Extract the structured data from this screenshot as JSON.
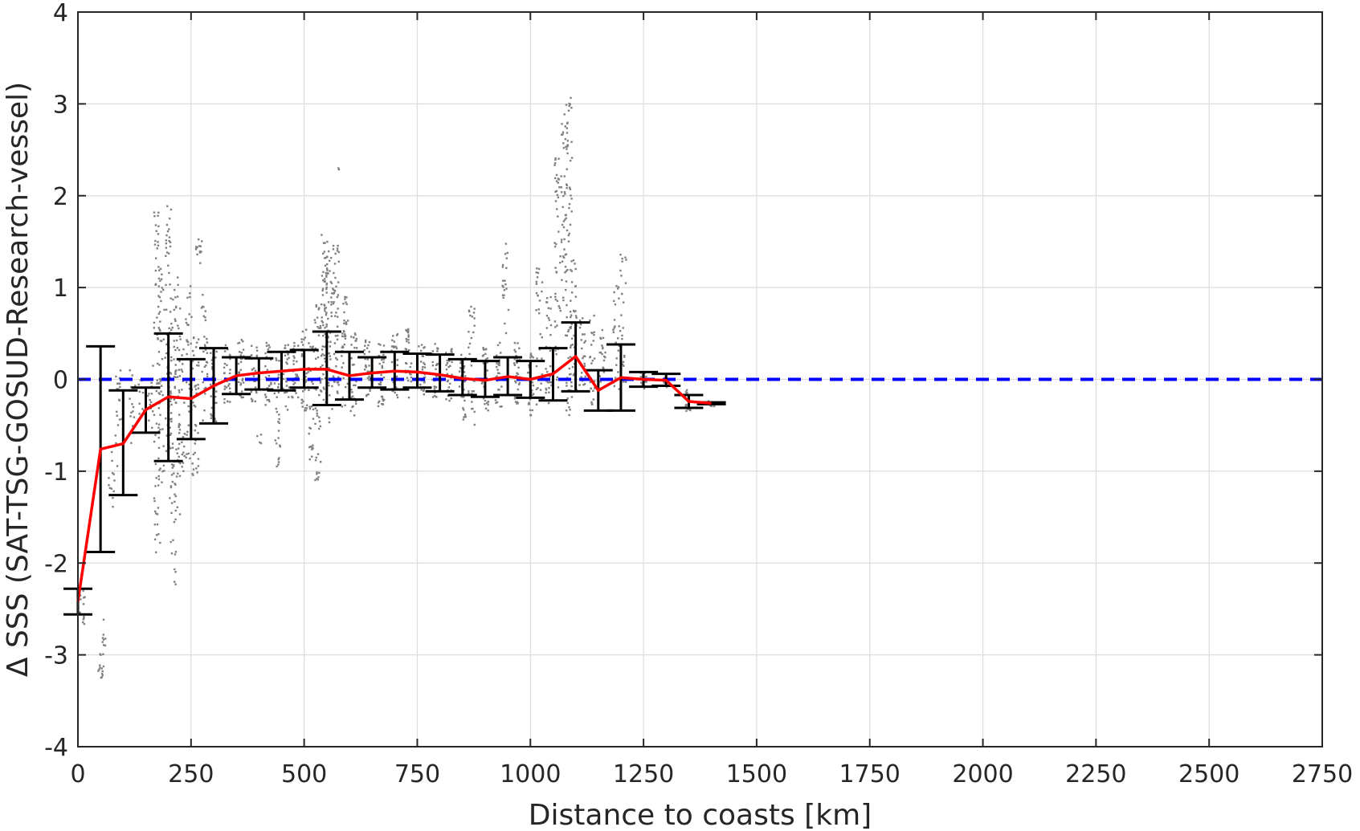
{
  "chart_data": {
    "type": "scatter",
    "xlabel": "Distance to coasts [km]",
    "ylabel": "Δ SSS (SAT-TSG-GOSUD-Research-vessel)",
    "xlim": [
      0,
      2750
    ],
    "ylim": [
      -4,
      4
    ],
    "xticks": [
      0,
      250,
      500,
      750,
      1000,
      1250,
      1500,
      1750,
      2000,
      2250,
      2500,
      2750
    ],
    "yticks": [
      -4,
      -3,
      -2,
      -1,
      0,
      1,
      2,
      3,
      4
    ],
    "grid": true,
    "colors": {
      "scatter": "#808080",
      "mean_line": "#ff0000",
      "zero_line": "#0000ff",
      "error_bars": "#000000"
    },
    "reference_line": {
      "y": 0,
      "style": "dashed"
    },
    "mean_curve": {
      "x": [
        0,
        50,
        100,
        150,
        200,
        250,
        300,
        350,
        400,
        450,
        500,
        550,
        600,
        650,
        700,
        750,
        800,
        850,
        900,
        950,
        1000,
        1050,
        1100,
        1150,
        1200,
        1250,
        1300,
        1350,
        1400
      ],
      "y": [
        -2.42,
        -0.76,
        -0.7,
        -0.33,
        -0.19,
        -0.21,
        -0.07,
        0.04,
        0.07,
        0.09,
        0.11,
        0.11,
        0.04,
        0.07,
        0.09,
        0.08,
        0.05,
        0.01,
        -0.01,
        0.03,
        0.0,
        0.06,
        0.25,
        -0.12,
        0.02,
        0.0,
        -0.01,
        -0.24,
        -0.26
      ]
    },
    "error_bars": {
      "x": [
        0,
        50,
        100,
        150,
        200,
        250,
        300,
        350,
        400,
        450,
        500,
        550,
        600,
        650,
        700,
        750,
        800,
        850,
        900,
        950,
        1000,
        1050,
        1100,
        1150,
        1200,
        1250,
        1300,
        1350,
        1400
      ],
      "lower": [
        -2.56,
        -1.88,
        -1.26,
        -0.58,
        -0.89,
        -0.65,
        -0.48,
        -0.16,
        -0.11,
        -0.12,
        -0.09,
        -0.28,
        -0.22,
        -0.09,
        -0.11,
        -0.09,
        -0.13,
        -0.17,
        -0.19,
        -0.17,
        -0.2,
        -0.23,
        -0.13,
        -0.34,
        -0.34,
        -0.08,
        -0.07,
        -0.31,
        -0.27
      ],
      "upper": [
        -2.28,
        0.36,
        -0.12,
        -0.09,
        0.5,
        0.22,
        0.34,
        0.24,
        0.23,
        0.3,
        0.32,
        0.52,
        0.3,
        0.24,
        0.3,
        0.28,
        0.27,
        0.22,
        0.2,
        0.24,
        0.2,
        0.34,
        0.62,
        0.1,
        0.38,
        0.08,
        0.06,
        -0.17,
        -0.25
      ]
    },
    "scatter_columns": [
      {
        "x": 10,
        "ymin": -2.75,
        "ymax": -2.3,
        "n": 12
      },
      {
        "x": 50,
        "ymin": -3.28,
        "ymax": -2.95,
        "n": 14
      },
      {
        "x": 58,
        "ymin": -2.9,
        "ymax": -2.6,
        "n": 8
      },
      {
        "x": 75,
        "ymin": -1.65,
        "ymax": -0.75,
        "n": 12
      },
      {
        "x": 90,
        "ymin": -0.95,
        "ymax": 0.1,
        "n": 20
      },
      {
        "x": 120,
        "ymin": -0.7,
        "ymax": 0.2,
        "n": 14
      },
      {
        "x": 140,
        "ymin": -0.5,
        "ymax": 0.0,
        "n": 12
      },
      {
        "x": 160,
        "ymin": -0.55,
        "ymax": 0.2,
        "n": 14
      },
      {
        "x": 175,
        "ymin": -1.9,
        "ymax": 1.85,
        "n": 70
      },
      {
        "x": 185,
        "ymin": -1.2,
        "ymax": 1.3,
        "n": 40
      },
      {
        "x": 200,
        "ymin": -0.8,
        "ymax": 1.95,
        "n": 60
      },
      {
        "x": 210,
        "ymin": -2.27,
        "ymax": 0.9,
        "n": 55
      },
      {
        "x": 220,
        "ymin": -1.5,
        "ymax": 1.2,
        "n": 40
      },
      {
        "x": 230,
        "ymin": -1.0,
        "ymax": 0.5,
        "n": 30
      },
      {
        "x": 245,
        "ymin": -0.9,
        "ymax": 1.1,
        "n": 35
      },
      {
        "x": 260,
        "ymin": -1.1,
        "ymax": 0.5,
        "n": 40
      },
      {
        "x": 268,
        "ymin": 1.25,
        "ymax": 1.55,
        "n": 14
      },
      {
        "x": 280,
        "ymin": -0.45,
        "ymax": 1.0,
        "n": 30
      },
      {
        "x": 300,
        "ymin": -0.5,
        "ymax": 0.35,
        "n": 30
      },
      {
        "x": 330,
        "ymin": -0.3,
        "ymax": 0.4,
        "n": 30
      },
      {
        "x": 360,
        "ymin": -0.2,
        "ymax": 0.45,
        "n": 30
      },
      {
        "x": 390,
        "ymin": -0.25,
        "ymax": 0.4,
        "n": 30
      },
      {
        "x": 400,
        "ymin": -0.7,
        "ymax": -0.6,
        "n": 4
      },
      {
        "x": 420,
        "ymin": -0.3,
        "ymax": 0.4,
        "n": 30
      },
      {
        "x": 440,
        "ymin": -0.95,
        "ymax": 0.35,
        "n": 30
      },
      {
        "x": 460,
        "ymin": -0.35,
        "ymax": 0.45,
        "n": 30
      },
      {
        "x": 480,
        "ymin": -0.2,
        "ymax": 0.45,
        "n": 30
      },
      {
        "x": 500,
        "ymin": -0.35,
        "ymax": 0.55,
        "n": 30
      },
      {
        "x": 515,
        "ymin": -0.9,
        "ymax": 0.4,
        "n": 30
      },
      {
        "x": 530,
        "ymin": -1.1,
        "ymax": 0.9,
        "n": 45
      },
      {
        "x": 545,
        "ymin": -0.3,
        "ymax": 1.6,
        "n": 60
      },
      {
        "x": 555,
        "ymin": -0.5,
        "ymax": 1.4,
        "n": 55
      },
      {
        "x": 570,
        "ymin": -0.2,
        "ymax": 1.7,
        "n": 45
      },
      {
        "x": 575,
        "ymin": 2.25,
        "ymax": 2.3,
        "n": 2
      },
      {
        "x": 590,
        "ymin": -0.3,
        "ymax": 0.9,
        "n": 35
      },
      {
        "x": 610,
        "ymin": -0.4,
        "ymax": 0.5,
        "n": 30
      },
      {
        "x": 640,
        "ymin": -0.2,
        "ymax": 0.45,
        "n": 30
      },
      {
        "x": 670,
        "ymin": -0.3,
        "ymax": 0.4,
        "n": 30
      },
      {
        "x": 700,
        "ymin": -0.2,
        "ymax": 0.5,
        "n": 30
      },
      {
        "x": 730,
        "ymin": -0.2,
        "ymax": 0.55,
        "n": 30
      },
      {
        "x": 760,
        "ymin": -0.2,
        "ymax": 0.45,
        "n": 30
      },
      {
        "x": 790,
        "ymin": -0.25,
        "ymax": 0.4,
        "n": 30
      },
      {
        "x": 820,
        "ymin": -0.3,
        "ymax": 0.35,
        "n": 30
      },
      {
        "x": 850,
        "ymin": -0.45,
        "ymax": 0.3,
        "n": 30
      },
      {
        "x": 870,
        "ymin": -0.5,
        "ymax": 0.85,
        "n": 30
      },
      {
        "x": 900,
        "ymin": -0.35,
        "ymax": 0.35,
        "n": 30
      },
      {
        "x": 930,
        "ymin": -0.3,
        "ymax": 0.45,
        "n": 30
      },
      {
        "x": 945,
        "ymin": 0.5,
        "ymax": 1.5,
        "n": 20
      },
      {
        "x": 970,
        "ymin": -0.3,
        "ymax": 0.4,
        "n": 30
      },
      {
        "x": 1000,
        "ymin": -0.4,
        "ymax": 0.3,
        "n": 30
      },
      {
        "x": 1020,
        "ymin": -0.3,
        "ymax": 1.3,
        "n": 30
      },
      {
        "x": 1040,
        "ymin": -0.3,
        "ymax": 0.9,
        "n": 30
      },
      {
        "x": 1060,
        "ymin": -0.1,
        "ymax": 2.5,
        "n": 45
      },
      {
        "x": 1075,
        "ymin": 0.8,
        "ymax": 2.9,
        "n": 45
      },
      {
        "x": 1085,
        "ymin": -0.5,
        "ymax": 3.08,
        "n": 65
      },
      {
        "x": 1095,
        "ymin": -0.2,
        "ymax": 1.3,
        "n": 35
      },
      {
        "x": 1115,
        "ymin": -0.1,
        "ymax": 0.7,
        "n": 25
      },
      {
        "x": 1135,
        "ymin": -0.3,
        "ymax": 0.7,
        "n": 25
      },
      {
        "x": 1160,
        "ymin": -0.2,
        "ymax": 0.55,
        "n": 20
      },
      {
        "x": 1190,
        "ymin": -0.15,
        "ymax": 1.05,
        "n": 25
      },
      {
        "x": 1205,
        "ymin": -0.1,
        "ymax": 1.4,
        "n": 25
      },
      {
        "x": 1250,
        "ymin": -0.1,
        "ymax": 0.1,
        "n": 15
      },
      {
        "x": 1300,
        "ymin": -0.1,
        "ymax": 0.05,
        "n": 12
      },
      {
        "x": 1350,
        "ymin": -0.4,
        "ymax": -0.1,
        "n": 12
      },
      {
        "x": 1400,
        "ymin": -0.3,
        "ymax": -0.22,
        "n": 8
      }
    ]
  }
}
